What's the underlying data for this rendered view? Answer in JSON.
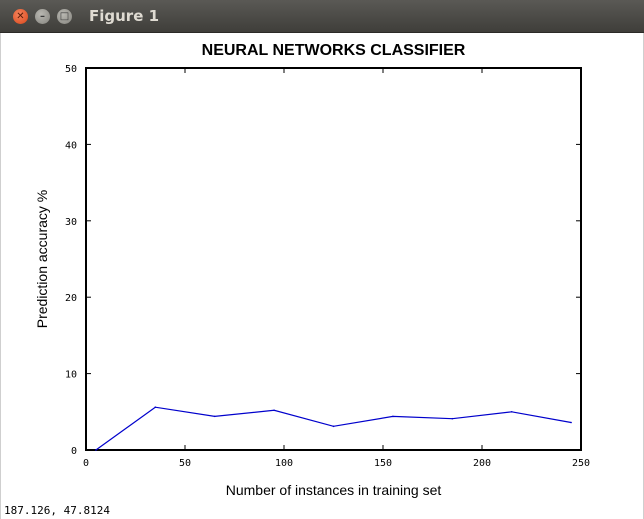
{
  "window": {
    "title": "Figure 1",
    "controls": {
      "close": "✕",
      "minimize": "–",
      "maximize": "□"
    }
  },
  "status": {
    "cursor": "187.126,  47.8124"
  },
  "colors": {
    "line": "#0000cc",
    "axes": "#000000"
  },
  "chart_data": {
    "type": "line",
    "title": "NEURAL NETWORKS CLASSIFIER",
    "xlabel": "Number of instances in training set",
    "ylabel": "Prediction accuracy %",
    "xlim": [
      0,
      250
    ],
    "ylim": [
      0,
      50
    ],
    "xticks": [
      0,
      50,
      100,
      150,
      200,
      250
    ],
    "yticks": [
      0,
      10,
      20,
      30,
      40,
      50
    ],
    "grid": false,
    "series": [
      {
        "x": [
          5,
          35,
          65,
          95,
          125,
          155,
          185,
          215,
          245
        ],
        "y": [
          0,
          5.6,
          4.4,
          5.2,
          3.1,
          4.4,
          4.1,
          5.0,
          3.6
        ]
      }
    ]
  }
}
